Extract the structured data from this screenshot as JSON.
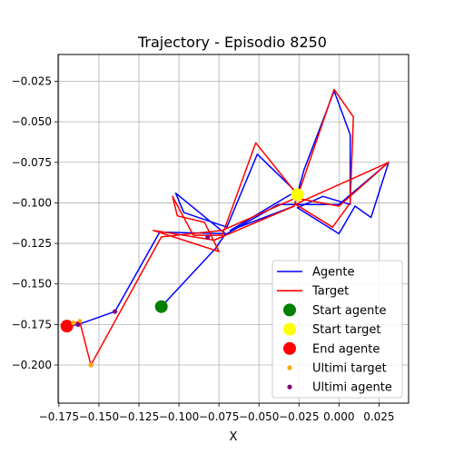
{
  "chart_data": {
    "type": "line",
    "title": "Trajectory - Episodio 8250",
    "xlabel": "X",
    "ylabel": "",
    "xlim": [
      -0.1755,
      0.0435
    ],
    "ylim": [
      -0.2235,
      -0.0085
    ],
    "xticks": [
      -0.175,
      -0.15,
      -0.125,
      -0.1,
      -0.075,
      -0.05,
      -0.025,
      0.0,
      0.025
    ],
    "xtick_labels": [
      "−0.175",
      "−0.150",
      "−0.125",
      "−0.100",
      "−0.075",
      "−0.050",
      "−0.025",
      "0.000",
      "0.025"
    ],
    "yticks": [
      -0.2,
      -0.175,
      -0.15,
      -0.125,
      -0.1,
      -0.075,
      -0.05,
      -0.025
    ],
    "ytick_labels": [
      "−0.200",
      "−0.175",
      "−0.150",
      "−0.125",
      "−0.100",
      "−0.075",
      "−0.050",
      "−0.025"
    ],
    "grid": true,
    "legend_position": "bottom-right",
    "series": [
      {
        "name": "Agente",
        "kind": "line",
        "color": "#0000ff",
        "points": [
          [
            -0.111,
            -0.164
          ],
          [
            -0.077,
            -0.128
          ],
          [
            -0.071,
            -0.119
          ],
          [
            -0.102,
            -0.094
          ],
          [
            -0.097,
            -0.106
          ],
          [
            -0.07,
            -0.115
          ],
          [
            -0.051,
            -0.07
          ],
          [
            -0.027,
            -0.093
          ],
          [
            -0.068,
            -0.117
          ],
          [
            -0.028,
            -0.102
          ],
          [
            -0.022,
            -0.08
          ],
          [
            -0.003,
            -0.031
          ],
          [
            0.007,
            -0.058
          ],
          [
            0.007,
            -0.101
          ],
          [
            -0.01,
            -0.096
          ],
          [
            -0.026,
            -0.103
          ],
          [
            0.0,
            -0.119
          ],
          [
            0.01,
            -0.102
          ],
          [
            0.02,
            -0.109
          ],
          [
            0.031,
            -0.075
          ],
          [
            0.0,
            -0.101
          ],
          [
            -0.038,
            -0.101
          ],
          [
            -0.07,
            -0.119
          ],
          [
            -0.112,
            -0.118
          ],
          [
            -0.14,
            -0.167
          ],
          [
            -0.163,
            -0.175
          ],
          [
            -0.17,
            -0.176
          ]
        ]
      },
      {
        "name": "Target",
        "kind": "line",
        "color": "#ff0000",
        "points": [
          [
            -0.026,
            -0.095
          ],
          [
            -0.052,
            -0.063
          ],
          [
            -0.073,
            -0.12
          ],
          [
            -0.091,
            -0.12
          ],
          [
            -0.104,
            -0.096
          ],
          [
            -0.101,
            -0.108
          ],
          [
            -0.084,
            -0.112
          ],
          [
            -0.075,
            -0.13
          ],
          [
            -0.116,
            -0.117
          ],
          [
            -0.078,
            -0.123
          ],
          [
            -0.028,
            -0.102
          ],
          [
            -0.003,
            -0.03
          ],
          [
            0.009,
            -0.047
          ],
          [
            0.007,
            -0.1
          ],
          [
            -0.004,
            -0.115
          ],
          [
            -0.027,
            -0.101
          ],
          [
            -0.023,
            -0.099
          ],
          [
            0.031,
            -0.075
          ],
          [
            0.0,
            -0.102
          ],
          [
            -0.027,
            -0.097
          ],
          [
            -0.073,
            -0.117
          ],
          [
            -0.111,
            -0.121
          ],
          [
            -0.155,
            -0.2
          ],
          [
            -0.162,
            -0.173
          ],
          [
            -0.17,
            -0.176
          ]
        ]
      },
      {
        "name": "Start agente",
        "kind": "marker",
        "color": "#008000",
        "size": "large",
        "points": [
          [
            -0.111,
            -0.164
          ]
        ]
      },
      {
        "name": "Start target",
        "kind": "marker",
        "color": "#ffff00",
        "size": "large",
        "points": [
          [
            -0.026,
            -0.095
          ]
        ]
      },
      {
        "name": "End agente",
        "kind": "marker",
        "color": "#ff0000",
        "size": "large",
        "points": [
          [
            -0.17,
            -0.176
          ]
        ]
      },
      {
        "name": "Ultimi target",
        "kind": "marker",
        "color": "#ffa500",
        "size": "small",
        "points": [
          [
            -0.162,
            -0.173
          ],
          [
            -0.155,
            -0.2
          ],
          [
            -0.166,
            -0.174
          ]
        ]
      },
      {
        "name": "Ultimi agente",
        "kind": "marker",
        "color": "#800080",
        "size": "small",
        "points": [
          [
            -0.163,
            -0.175
          ],
          [
            -0.14,
            -0.167
          ],
          [
            -0.082,
            -0.121
          ]
        ]
      }
    ]
  }
}
